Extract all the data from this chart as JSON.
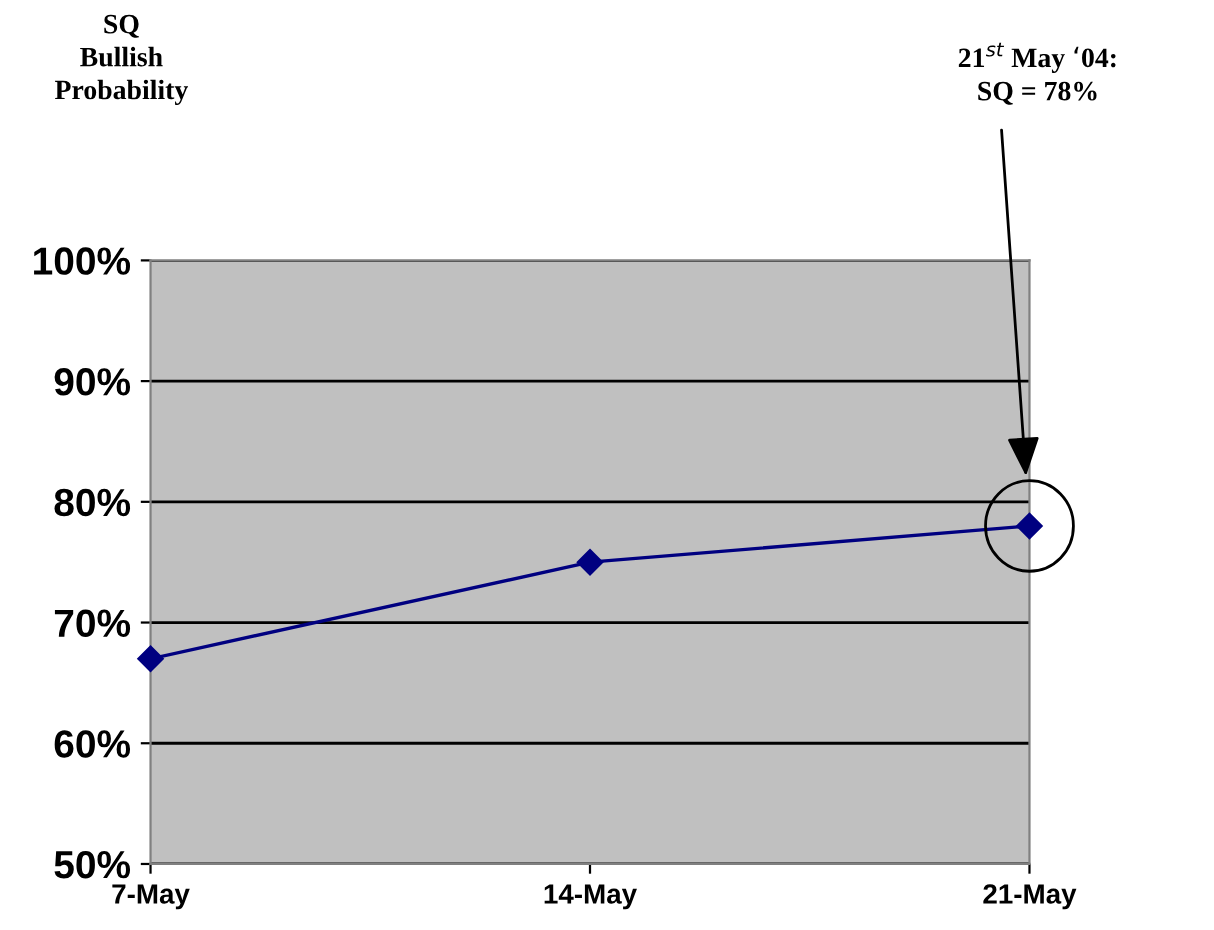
{
  "chart_data": {
    "type": "line",
    "categories": [
      "7-May",
      "14-May",
      "21-May"
    ],
    "series": [
      {
        "color": "#000080",
        "values": [
          67,
          75,
          78
        ]
      }
    ],
    "ylim": [
      50,
      100
    ],
    "yticks": [
      {
        "value": 50,
        "label": "50%"
      },
      {
        "value": 60,
        "label": "60%"
      },
      {
        "value": 70,
        "label": "70%"
      },
      {
        "value": 80,
        "label": "80%"
      },
      {
        "value": 90,
        "label": "90%"
      },
      {
        "value": 100,
        "label": "100%"
      }
    ],
    "grid": "y",
    "marker": "diamond",
    "line_style": "solid",
    "annotations": [
      "SQ\nBullish\nProbability",
      "21$^{st}$ May ‘04:\nSQ = 78%"
    ]
  }
}
